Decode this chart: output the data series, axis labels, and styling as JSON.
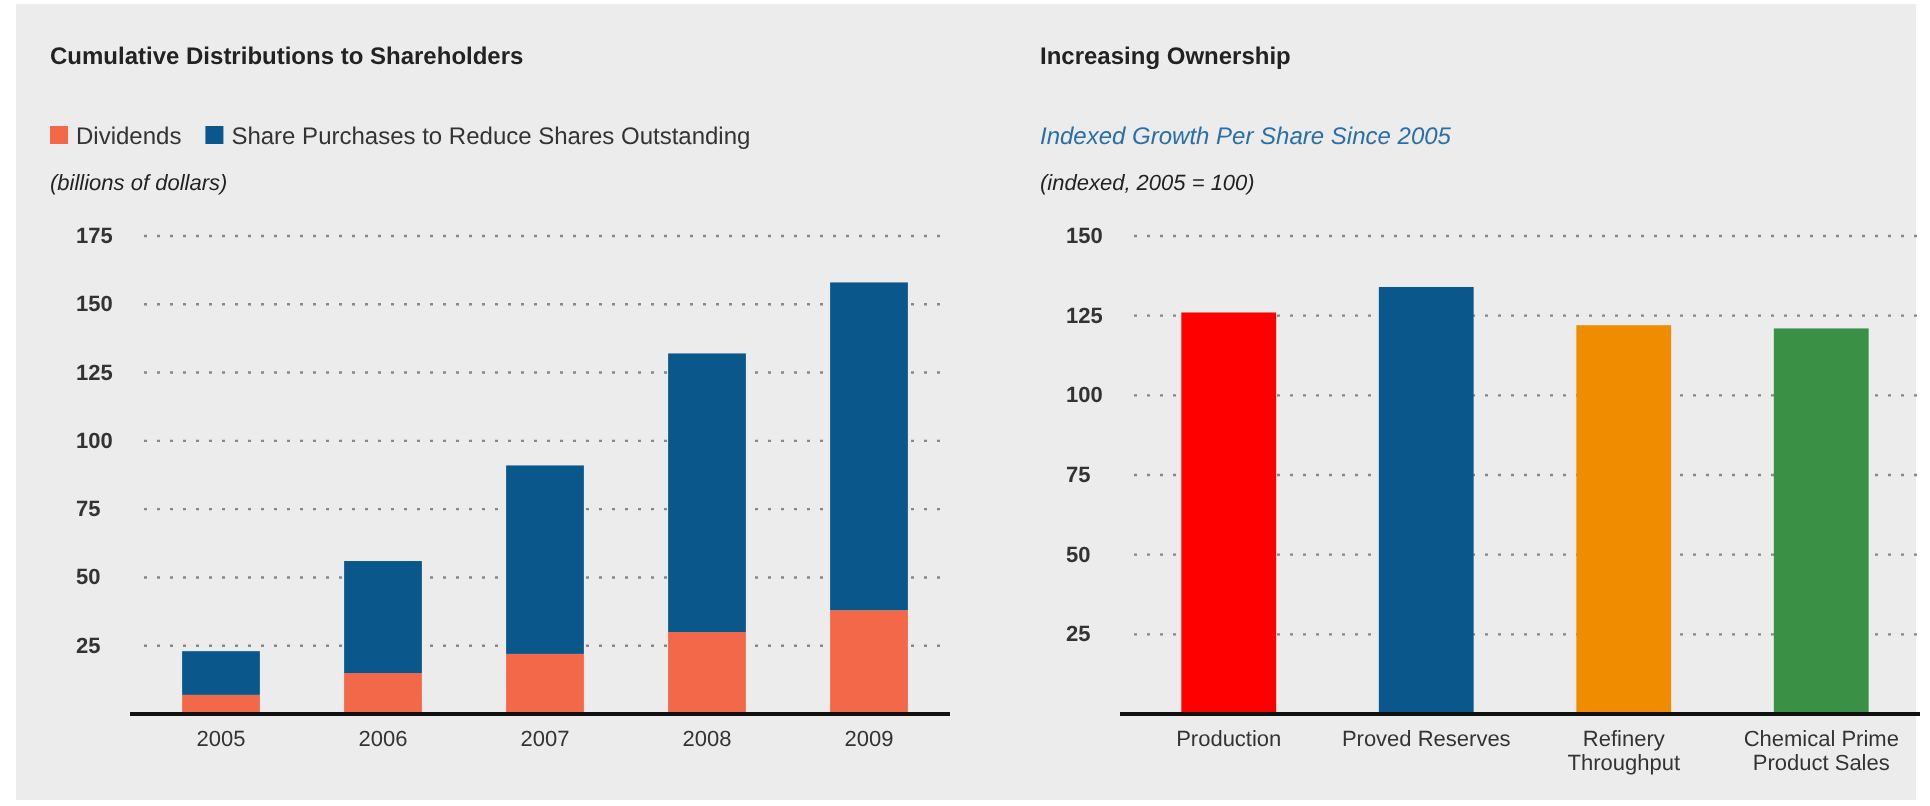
{
  "chart_data": [
    {
      "type": "bar",
      "title": "Cumulative Distributions to Shareholders",
      "ylabel": "(billions of dollars)",
      "categories": [
        "2005",
        "2006",
        "2007",
        "2008",
        "2009"
      ],
      "stacked": true,
      "series": [
        {
          "name": "Dividends",
          "color": "#f26849",
          "values": [
            7,
            15,
            22,
            30,
            38
          ]
        },
        {
          "name": "Share Purchases to Reduce Shares Outstanding",
          "color": "#0a578c",
          "values": [
            16,
            41,
            69,
            102,
            120
          ]
        }
      ],
      "ylim": [
        0,
        175
      ],
      "yticks": [
        25,
        50,
        75,
        100,
        125,
        150,
        175
      ],
      "grid": "y",
      "legend": "top left"
    },
    {
      "type": "bar",
      "title": "Increasing Ownership",
      "subtitle": "Indexed Growth Per Share Since 2005",
      "ylabel": "(indexed, 2005 = 100)",
      "categories": [
        "Production",
        "Proved Reserves",
        "Refinery Throughput",
        "Chemical Prime Product Sales"
      ],
      "values": [
        126,
        134,
        122,
        121
      ],
      "colors": [
        "#ff0000",
        "#0a578c",
        "#f08c00",
        "#3a9146"
      ],
      "ylim": [
        0,
        150
      ],
      "yticks": [
        25,
        50,
        75,
        100,
        125,
        150
      ],
      "grid": "y"
    }
  ]
}
